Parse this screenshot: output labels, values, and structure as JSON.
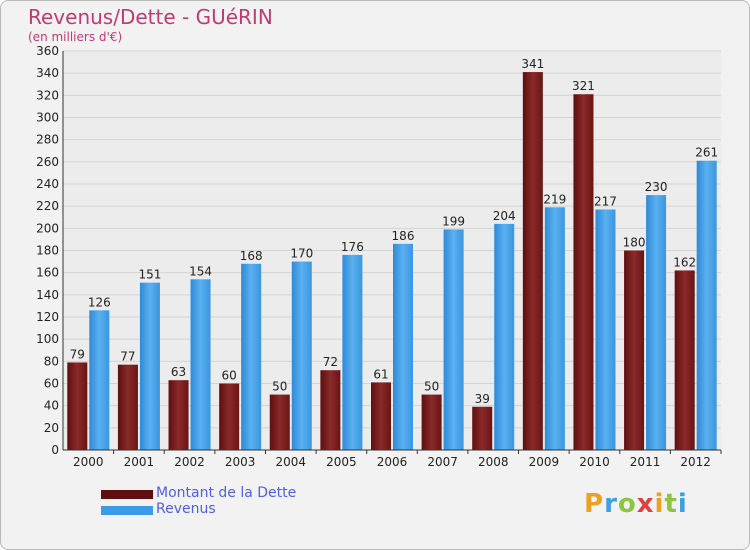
{
  "title": "Revenus/Dette - GUéRIN",
  "subtitle": "(en milliers d'€)",
  "colors": {
    "dette": "#7a1a1a",
    "revenus": "#3c9be6",
    "title": "#c23a74",
    "legend_text": "#4f5fe0"
  },
  "chart_data": {
    "type": "bar",
    "title": "Revenus/Dette - GUéRIN",
    "subtitle": "(en milliers d'€)",
    "categories": [
      "2000",
      "2001",
      "2002",
      "2003",
      "2004",
      "2005",
      "2006",
      "2007",
      "2008",
      "2009",
      "2010",
      "2011",
      "2012"
    ],
    "series": [
      {
        "name": "Montant de la Dette",
        "values": [
          79,
          77,
          63,
          60,
          50,
          72,
          61,
          50,
          39,
          341,
          321,
          180,
          162
        ]
      },
      {
        "name": "Revenus",
        "values": [
          126,
          151,
          154,
          168,
          170,
          176,
          186,
          199,
          204,
          219,
          217,
          230,
          261
        ]
      }
    ],
    "ylim": [
      0,
      360
    ],
    "ytick_step": 20,
    "grid": true,
    "legend_position": "bottom-left"
  },
  "legend": [
    {
      "label": "Montant de la Dette"
    },
    {
      "label": "Revenus"
    }
  ],
  "logo": {
    "letters": [
      "P",
      "r",
      "o",
      "x",
      "i",
      "t",
      "i"
    ],
    "colors": [
      "#f0a020",
      "#3aa0e0",
      "#8cc63f",
      "#e04040",
      "#f0a020",
      "#8cc63f",
      "#3aa0e0"
    ]
  }
}
